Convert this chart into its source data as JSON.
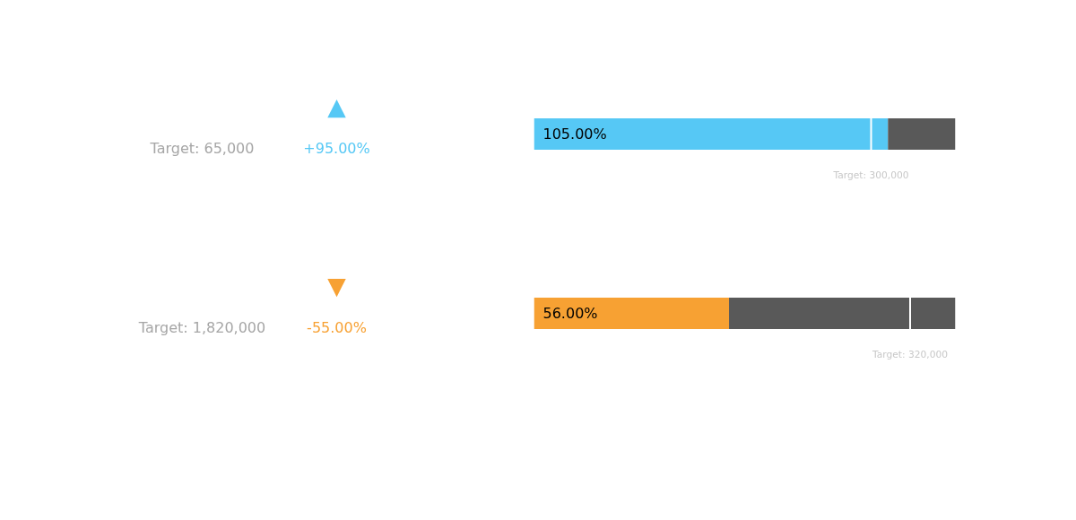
{
  "chart_data": [
    {
      "type": "other",
      "annotations": [
        "▲",
        "Target: 65,000",
        "+95.00%"
      ]
    },
    {
      "type": "bar",
      "orientation": "horizontal",
      "stacked": true,
      "categories": [
        null
      ],
      "xlim": [
        0,
        125
      ],
      "tick_labels": false,
      "series": [
        {
          "color": "#56c8f5",
          "values": [
            105
          ],
          "value_labels": [
            "105.00%"
          ]
        },
        {
          "color": "#595959",
          "values": [
            20
          ]
        }
      ],
      "ref_lines": [
        {
          "axis": "x",
          "value": 100,
          "color": "#ffffff"
        }
      ],
      "annotations": [
        "Target: 300,000"
      ]
    },
    {
      "type": "other",
      "annotations": [
        "▼",
        "Target: 1,820,000",
        "-55.00%"
      ]
    },
    {
      "type": "bar",
      "orientation": "horizontal",
      "stacked": true,
      "categories": [
        null
      ],
      "xlim": [
        0,
        121
      ],
      "tick_labels": false,
      "series": [
        {
          "color": "#f7a133",
          "values": [
            56
          ],
          "value_labels": [
            "56.00%"
          ]
        },
        {
          "color": "#595959",
          "values": [
            65
          ]
        }
      ],
      "ref_lines": [
        {
          "axis": "x",
          "value": 108,
          "color": "#ffffff"
        }
      ],
      "annotations": [
        "Target: 320,000"
      ]
    }
  ]
}
